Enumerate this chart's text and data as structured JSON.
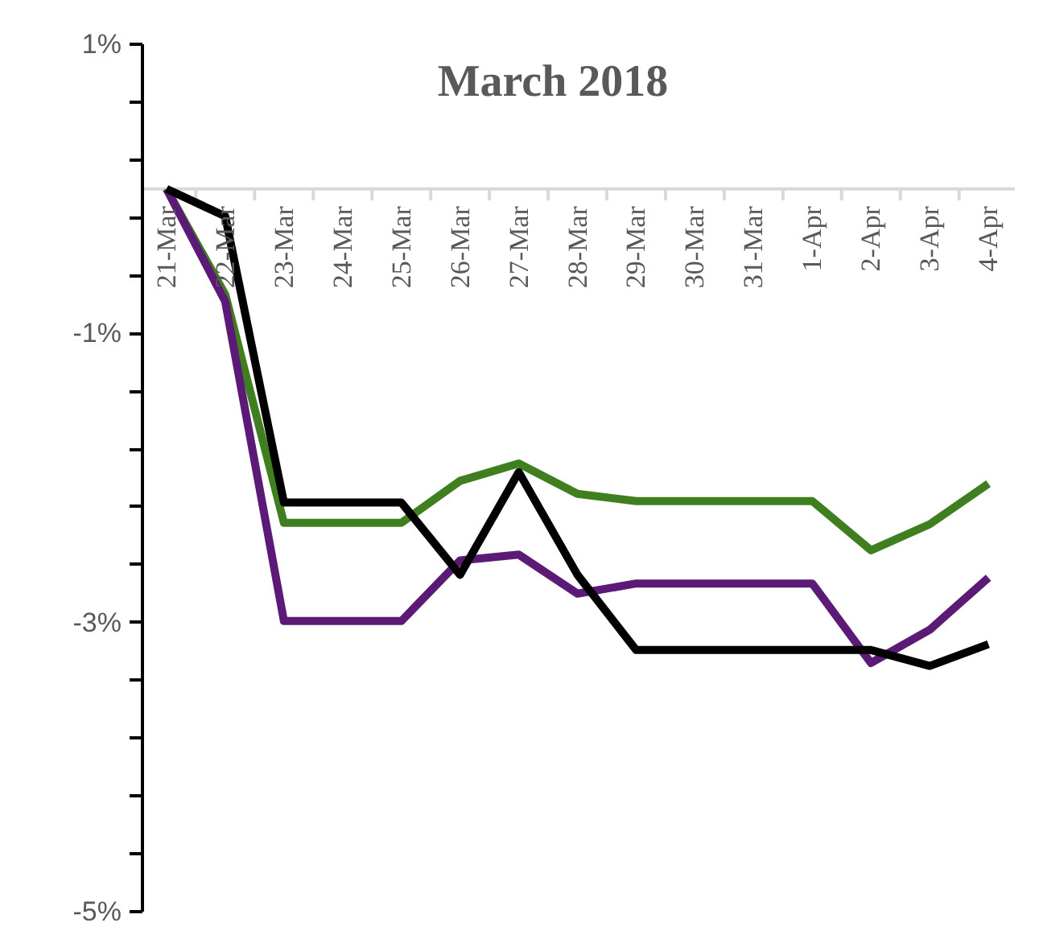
{
  "chart_data": {
    "type": "line",
    "title": "March 2018",
    "categories": [
      "21-Mar",
      "22-Mar",
      "23-Mar",
      "24-Mar",
      "25-Mar",
      "26-Mar",
      "27-Mar",
      "28-Mar",
      "29-Mar",
      "30-Mar",
      "31-Mar",
      "1-Apr",
      "2-Apr",
      "3-Apr",
      "4-Apr"
    ],
    "series": [
      {
        "color": "#3f7f1f",
        "values": [
          0,
          -0.73,
          -2.31,
          -2.31,
          -2.31,
          -2.02,
          -1.9,
          -2.11,
          -2.16,
          -2.16,
          -2.16,
          -2.16,
          -2.5,
          -2.32,
          -2.04
        ]
      },
      {
        "color": "#5b1a75",
        "values": [
          0,
          -0.78,
          -2.99,
          -2.99,
          -2.99,
          -2.57,
          -2.53,
          -2.8,
          -2.73,
          -2.73,
          -2.73,
          -2.73,
          -3.28,
          -3.05,
          -2.69
        ]
      },
      {
        "color": "#000000",
        "values": [
          0,
          -0.19,
          -2.17,
          -2.17,
          -2.17,
          -2.67,
          -1.96,
          -2.67,
          -3.19,
          -3.19,
          -3.19,
          -3.19,
          -3.19,
          -3.3,
          -3.15
        ]
      }
    ],
    "ylim": [
      -5,
      1
    ],
    "yticks": [
      {
        "value": 1,
        "label": "1%"
      },
      {
        "value": 0.6,
        "label": null
      },
      {
        "value": 0.2,
        "label": null
      },
      {
        "value": -0.2,
        "label": null
      },
      {
        "value": -0.6,
        "label": null
      },
      {
        "value": -1,
        "label": "-1%"
      },
      {
        "value": -1.4,
        "label": null
      },
      {
        "value": -1.8,
        "label": null
      },
      {
        "value": -2.2,
        "label": null
      },
      {
        "value": -2.6,
        "label": null
      },
      {
        "value": -3,
        "label": "-3%"
      },
      {
        "value": -3.4,
        "label": null
      },
      {
        "value": -3.8,
        "label": null
      },
      {
        "value": -4.2,
        "label": null
      },
      {
        "value": -4.6,
        "label": null
      },
      {
        "value": -5,
        "label": "-5%"
      }
    ],
    "grid": false,
    "marker": "none",
    "line_style": "solid"
  }
}
